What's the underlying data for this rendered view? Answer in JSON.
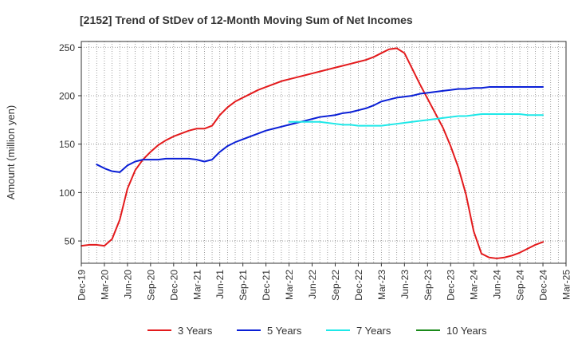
{
  "chart_data": {
    "type": "line",
    "title": "[2152]  Trend of StDev of 12-Month Moving Sum of Net Incomes",
    "xlabel": "",
    "ylabel": "Amount (million yen)",
    "ylim": [
      27,
      256
    ],
    "yticks": [
      50,
      100,
      150,
      200,
      250
    ],
    "xlim": [
      "Dec-19",
      "Mar-25"
    ],
    "xticks": [
      "Dec-19",
      "Mar-20",
      "Jun-20",
      "Sep-20",
      "Dec-20",
      "Mar-21",
      "Jun-21",
      "Sep-21",
      "Dec-21",
      "Mar-22",
      "Jun-22",
      "Sep-22",
      "Dec-22",
      "Mar-23",
      "Jun-23",
      "Sep-23",
      "Dec-23",
      "Mar-24",
      "Jun-24",
      "Sep-24",
      "Dec-24",
      "Mar-25"
    ],
    "grid": true,
    "legend_position": "bottom",
    "series": [
      {
        "name": "3 Years",
        "color": "#e31a1c",
        "x": [
          "Dec-19",
          "Jan-20",
          "Feb-20",
          "Mar-20",
          "Apr-20",
          "May-20",
          "Jun-20",
          "Jul-20",
          "Aug-20",
          "Sep-20",
          "Oct-20",
          "Nov-20",
          "Dec-20",
          "Jan-21",
          "Feb-21",
          "Mar-21",
          "Apr-21",
          "May-21",
          "Jun-21",
          "Jul-21",
          "Aug-21",
          "Sep-21",
          "Oct-21",
          "Nov-21",
          "Dec-21",
          "Jan-22",
          "Feb-22",
          "Mar-22",
          "Apr-22",
          "May-22",
          "Jun-22",
          "Jul-22",
          "Aug-22",
          "Sep-22",
          "Oct-22",
          "Nov-22",
          "Dec-22",
          "Jan-23",
          "Feb-23",
          "Mar-23",
          "Apr-23",
          "May-23",
          "Jun-23",
          "Jul-23",
          "Aug-23",
          "Sep-23",
          "Oct-23",
          "Nov-23",
          "Dec-23",
          "Jan-24",
          "Feb-24",
          "Mar-24",
          "Apr-24",
          "May-24",
          "Jun-24",
          "Jul-24",
          "Aug-24",
          "Sep-24",
          "Oct-24",
          "Nov-24",
          "Dec-24"
        ],
        "values": [
          45,
          46,
          46,
          45,
          52,
          72,
          104,
          123,
          134,
          142,
          149,
          154,
          158,
          161,
          164,
          166,
          166,
          169,
          180,
          188,
          194,
          198,
          202,
          206,
          209,
          212,
          215,
          217,
          219,
          221,
          223,
          225,
          227,
          229,
          231,
          233,
          235,
          237,
          240,
          244,
          248,
          249,
          244,
          228,
          212,
          197,
          182,
          167,
          148,
          126,
          98,
          60,
          37,
          33,
          32,
          33,
          35,
          38,
          42,
          46,
          49
        ]
      },
      {
        "name": "5 Years",
        "color": "#0a1fd6",
        "x": [
          "Dec-19",
          "Jan-20",
          "Feb-20",
          "Mar-20",
          "Apr-20",
          "May-20",
          "Jun-20",
          "Jul-20",
          "Aug-20",
          "Sep-20",
          "Oct-20",
          "Nov-20",
          "Dec-20",
          "Jan-21",
          "Feb-21",
          "Mar-21",
          "Apr-21",
          "May-21",
          "Jun-21",
          "Jul-21",
          "Aug-21",
          "Sep-21",
          "Oct-21",
          "Nov-21",
          "Dec-21",
          "Jan-22",
          "Feb-22",
          "Mar-22",
          "Apr-22",
          "May-22",
          "Jun-22",
          "Jul-22",
          "Aug-22",
          "Sep-22",
          "Oct-22",
          "Nov-22",
          "Dec-22",
          "Jan-23",
          "Feb-23",
          "Mar-23",
          "Apr-23",
          "May-23",
          "Jun-23",
          "Jul-23",
          "Aug-23",
          "Sep-23",
          "Oct-23",
          "Nov-23",
          "Dec-23",
          "Jan-24",
          "Feb-24",
          "Mar-24",
          "Apr-24",
          "May-24",
          "Jun-24",
          "Jul-24",
          "Aug-24",
          "Sep-24",
          "Oct-24",
          "Nov-24",
          "Dec-24"
        ],
        "values": [
          null,
          null,
          129,
          125,
          122,
          121,
          128,
          132,
          134,
          134,
          134,
          135,
          135,
          135,
          135,
          134,
          132,
          134,
          142,
          148,
          152,
          155,
          158,
          161,
          164,
          166,
          168,
          170,
          172,
          174,
          176,
          178,
          179,
          180,
          182,
          183,
          185,
          187,
          190,
          194,
          196,
          198,
          199,
          200,
          202,
          203,
          204,
          205,
          206,
          207,
          207,
          208,
          208,
          209,
          209,
          209,
          209,
          209,
          209,
          209,
          209
        ]
      },
      {
        "name": "7 Years",
        "color": "#1ee8e8",
        "x": [
          "Mar-22",
          "Apr-22",
          "May-22",
          "Jun-22",
          "Jul-22",
          "Aug-22",
          "Sep-22",
          "Oct-22",
          "Nov-22",
          "Dec-22",
          "Jan-23",
          "Feb-23",
          "Mar-23",
          "Apr-23",
          "May-23",
          "Jun-23",
          "Jul-23",
          "Aug-23",
          "Sep-23",
          "Oct-23",
          "Nov-23",
          "Dec-23",
          "Jan-24",
          "Feb-24",
          "Mar-24",
          "Apr-24",
          "May-24",
          "Jun-24",
          "Jul-24",
          "Aug-24",
          "Sep-24",
          "Oct-24",
          "Nov-24",
          "Dec-24"
        ],
        "values": [
          173,
          173,
          173,
          173,
          173,
          172,
          171,
          170,
          170,
          169,
          169,
          169,
          169,
          170,
          171,
          172,
          173,
          174,
          175,
          176,
          177,
          178,
          179,
          179,
          180,
          181,
          181,
          181,
          181,
          181,
          181,
          180,
          180,
          180
        ]
      },
      {
        "name": "10 Years",
        "color": "#1a8a1a",
        "x": [],
        "values": []
      }
    ]
  }
}
